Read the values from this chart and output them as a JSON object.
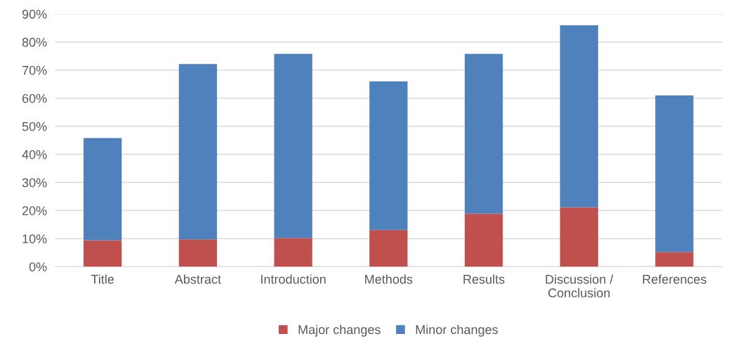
{
  "chart_data": {
    "type": "bar",
    "stacked": true,
    "categories": [
      "Title",
      "Abstract",
      "Introduction",
      "Methods",
      "Results",
      "Discussion /\nConclusion",
      "References"
    ],
    "series": [
      {
        "name": "Major changes",
        "color": "#c0504d",
        "values": [
          9.4,
          9.7,
          10.2,
          13.1,
          18.9,
          21.1,
          5.2
        ]
      },
      {
        "name": "Minor changes",
        "color": "#4f81bd",
        "values": [
          36.4,
          62.5,
          65.6,
          52.9,
          56.9,
          64.9,
          55.8
        ]
      }
    ],
    "ylim": [
      0,
      90
    ],
    "yticks": [
      {
        "value": 0,
        "label": "0%"
      },
      {
        "value": 10,
        "label": "10%"
      },
      {
        "value": 20,
        "label": "20%"
      },
      {
        "value": 30,
        "label": "30%"
      },
      {
        "value": 40,
        "label": "40%"
      },
      {
        "value": 50,
        "label": "50%"
      },
      {
        "value": 60,
        "label": "60%"
      },
      {
        "value": 70,
        "label": "70%"
      },
      {
        "value": 80,
        "label": "80%"
      },
      {
        "value": 90,
        "label": "90%"
      }
    ],
    "grid": "y",
    "legend": "bottom"
  }
}
